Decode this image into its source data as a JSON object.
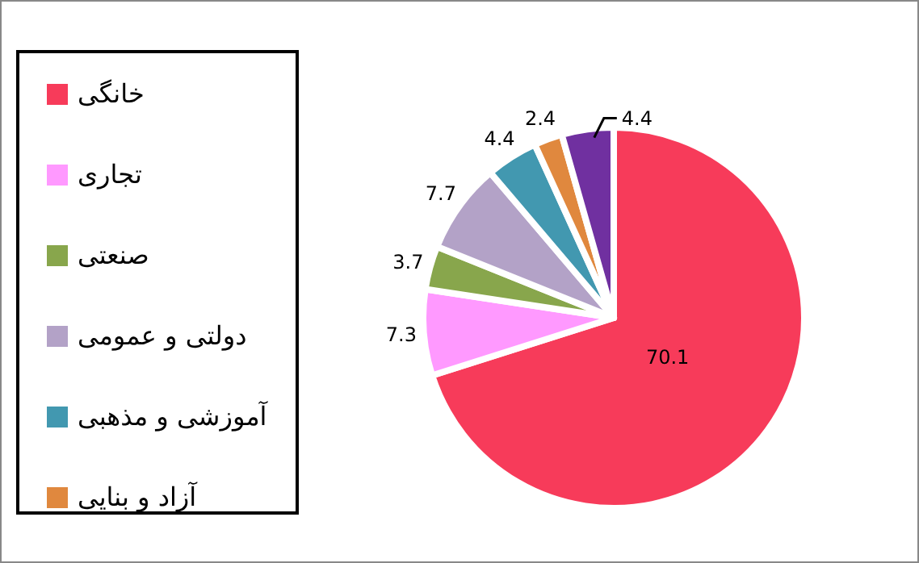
{
  "chart_data": {
    "type": "pie",
    "categories": [
      "خانگی",
      "تجاری",
      "صنعتی",
      "دولتی و عمومی",
      "آموزشی و مذهبی",
      "آزاد و بنایی",
      null
    ],
    "values": [
      70.1,
      7.3,
      3.7,
      7.7,
      4.4,
      2.4,
      4.4
    ],
    "colors": [
      "#f73b5a",
      "#ff99ff",
      "#88a64c",
      "#b3a2c7",
      "#4298b0",
      "#e0883e",
      "#7030a0"
    ],
    "data_labels": true,
    "legend": "left"
  }
}
